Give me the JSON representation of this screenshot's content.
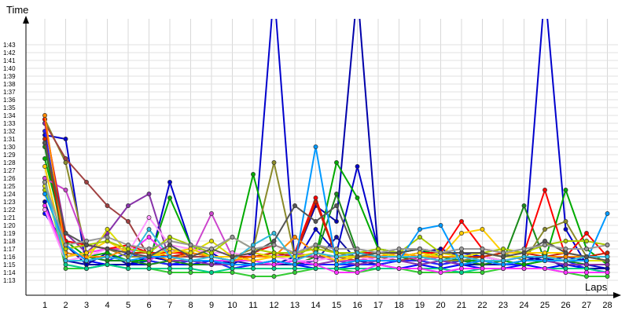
{
  "chart_data": {
    "type": "line",
    "ylabel": "Time",
    "xlabel": "Laps",
    "x": [
      1,
      2,
      3,
      4,
      5,
      6,
      7,
      8,
      9,
      10,
      11,
      12,
      13,
      14,
      15,
      16,
      17,
      18,
      19,
      20,
      21,
      22,
      23,
      24,
      25,
      26,
      27,
      28
    ],
    "x_tick_labels": [
      "1",
      "2",
      "3",
      "4",
      "5",
      "6",
      "7",
      "8",
      "9",
      "10",
      "11",
      "12",
      "13",
      "14",
      "15",
      "16",
      "17",
      "18",
      "19",
      "20",
      "21",
      "22",
      "23",
      "24",
      "25",
      "26",
      "27",
      "28"
    ],
    "y_tick_labels": [
      "1:13",
      "1:14",
      "1:15",
      "1:16",
      "1:17",
      "1:18",
      "1:19",
      "1:20",
      "1:21",
      "1:22",
      "1:23",
      "1:24",
      "1:25",
      "1:26",
      "1:27",
      "1:28",
      "1:29",
      "1:30",
      "1:31",
      "1:32",
      "1:33",
      "1:34",
      "1:35",
      "1:36",
      "1:37",
      "1:38",
      "1:39",
      "1:40",
      "1:41",
      "1:42",
      "1:43"
    ],
    "y_tick_seconds": [
      73,
      74,
      75,
      76,
      77,
      78,
      79,
      80,
      81,
      82,
      83,
      84,
      85,
      86,
      87,
      88,
      89,
      90,
      91,
      92,
      93,
      94,
      95,
      96,
      97,
      98,
      99,
      100,
      101,
      102,
      103
    ],
    "y_unit": "seconds (m:ss)",
    "ylim": [
      73,
      106
    ],
    "xlim": [
      0.8,
      28.2
    ],
    "grid": true,
    "legend": "none",
    "marker": "open circle",
    "series": [
      {
        "color": "#0000ff",
        "values": [
          81.5,
          77.5,
          75.5,
          75.0,
          75.0,
          75.5,
          75.0,
          75.0,
          75.5,
          74.5,
          75.0,
          75.0,
          75.0,
          74.5,
          74.5,
          75.0,
          75.0,
          74.5,
          75.0,
          74.5,
          75.0,
          74.5,
          74.5,
          75.0,
          74.5,
          75.0,
          74.5,
          74.5
        ]
      },
      {
        "color": "#0000cc",
        "values": [
          91.5,
          91.0,
          74.5,
          75.0,
          75.0,
          75.0,
          85.5,
          77.5,
          76.5,
          75.0,
          76.5,
          110.0,
          75.0,
          79.5,
          76.5,
          87.5,
          77.0,
          76.5,
          77.0,
          76.5,
          76.5,
          76.0,
          75.5,
          76.0,
          110.0,
          79.5,
          75.0,
          74.5
        ]
      },
      {
        "color": "#1010a0",
        "values": [
          90.5,
          77.5,
          75.0,
          76.5,
          75.0,
          76.0,
          75.5,
          75.5,
          75.0,
          75.5,
          75.0,
          75.0,
          75.0,
          75.5,
          78.5,
          75.5,
          75.0,
          75.5,
          76.0,
          75.5,
          75.0,
          75.0,
          75.0,
          75.5,
          76.0,
          74.5,
          74.5,
          74.5
        ]
      },
      {
        "color": "#2020ff",
        "values": [
          92.0,
          76.5,
          76.0,
          75.5,
          76.5,
          75.5,
          75.0,
          75.5,
          75.5,
          74.5,
          75.0,
          75.5,
          75.0,
          75.0,
          75.0,
          75.0,
          75.0,
          75.5,
          75.5,
          75.0,
          75.5,
          75.5,
          75.0,
          75.0,
          75.5,
          75.5,
          74.5,
          74.0
        ]
      },
      {
        "color": "#0000aa",
        "values": [
          83.0,
          75.5,
          75.0,
          75.0,
          75.0,
          76.0,
          75.5,
          75.5,
          75.5,
          75.0,
          75.0,
          75.0,
          76.0,
          82.5,
          80.5,
          110.0,
          76.5,
          76.0,
          76.5,
          77.0,
          76.0,
          76.0,
          75.5,
          76.0,
          75.5,
          76.0,
          75.5,
          75.5
        ]
      },
      {
        "color": "#00aa00",
        "values": [
          88.5,
          78.0,
          76.0,
          76.5,
          75.5,
          75.5,
          83.5,
          77.5,
          76.0,
          75.5,
          86.5,
          76.5,
          76.0,
          76.0,
          88.0,
          83.5,
          77.0,
          76.5,
          77.0,
          76.0,
          75.5,
          75.5,
          75.5,
          75.0,
          75.5,
          84.5,
          77.0,
          75.0
        ]
      },
      {
        "color": "#1a8a1a",
        "values": [
          90.0,
          76.5,
          76.0,
          75.5,
          75.5,
          75.0,
          75.5,
          75.0,
          75.0,
          75.0,
          75.0,
          75.5,
          75.0,
          76.0,
          84.0,
          76.5,
          76.0,
          76.0,
          75.5,
          76.0,
          75.5,
          75.0,
          75.5,
          82.5,
          75.5,
          75.5,
          75.0,
          75.0
        ]
      },
      {
        "color": "#33cc33",
        "values": [
          86.0,
          74.5,
          74.5,
          75.0,
          74.5,
          74.5,
          74.0,
          74.0,
          74.0,
          74.0,
          73.5,
          73.5,
          74.0,
          74.5,
          74.5,
          74.0,
          74.5,
          74.5,
          74.0,
          74.0,
          74.0,
          74.0,
          74.5,
          74.5,
          74.5,
          74.0,
          73.5,
          73.5
        ]
      },
      {
        "color": "#00cc88",
        "values": [
          85.5,
          75.0,
          74.5,
          75.0,
          74.5,
          74.5,
          74.5,
          74.5,
          74.0,
          74.5,
          74.5,
          74.5,
          74.5,
          74.5,
          74.5,
          74.5,
          74.5,
          74.5,
          74.5,
          74.5,
          74.0,
          74.5,
          74.5,
          74.5,
          74.5,
          74.5,
          74.5,
          74.0
        ]
      },
      {
        "color": "#8a8a2a",
        "values": [
          93.5,
          88.0,
          76.5,
          77.0,
          76.0,
          76.0,
          76.0,
          76.5,
          76.0,
          76.0,
          77.0,
          88.0,
          76.0,
          77.5,
          76.5,
          76.0,
          76.0,
          76.0,
          76.0,
          75.5,
          75.5,
          76.0,
          76.5,
          75.5,
          79.5,
          80.5,
          76.0,
          76.0
        ]
      },
      {
        "color": "#a04040",
        "values": [
          93.0,
          88.5,
          85.5,
          82.5,
          80.5,
          76.0,
          76.0,
          76.0,
          76.0,
          75.5,
          76.0,
          76.0,
          76.0,
          76.0,
          76.0,
          75.5,
          76.0,
          75.5,
          76.0,
          75.5,
          76.0,
          76.0,
          75.5,
          76.0,
          76.0,
          75.5,
          75.5,
          75.5
        ]
      },
      {
        "color": "#8833aa",
        "values": [
          93.0,
          79.0,
          76.5,
          79.0,
          82.5,
          84.0,
          75.5,
          75.5,
          75.0,
          75.0,
          75.0,
          75.0,
          75.5,
          75.0,
          75.5,
          75.0,
          75.5,
          75.5,
          75.0,
          75.5,
          75.0,
          75.5,
          75.0,
          75.5,
          75.5,
          75.0,
          75.0,
          75.0
        ]
      },
      {
        "color": "#cc44cc",
        "values": [
          86.0,
          84.5,
          77.5,
          77.0,
          77.0,
          75.5,
          77.0,
          76.0,
          81.5,
          76.0,
          76.5,
          76.0,
          76.5,
          76.0,
          75.5,
          75.5,
          76.0,
          76.5,
          75.5,
          76.0,
          76.0,
          75.5,
          75.5,
          76.0,
          76.0,
          75.5,
          75.5,
          75.5
        ]
      },
      {
        "color": "#ff33ff",
        "values": [
          82.5,
          76.0,
          76.5,
          77.0,
          76.5,
          78.5,
          76.0,
          75.5,
          75.5,
          75.5,
          75.5,
          75.0,
          75.5,
          75.0,
          74.0,
          74.0,
          75.0,
          74.5,
          74.5,
          74.0,
          74.5,
          74.5,
          74.5,
          74.5,
          74.5,
          74.0,
          74.0,
          74.0
        ]
      },
      {
        "color": "#ff99ff",
        "values": [
          82.0,
          75.5,
          76.0,
          77.0,
          76.5,
          81.0,
          77.5,
          77.0,
          76.5,
          76.5,
          76.0,
          76.0,
          75.5,
          75.5,
          76.0,
          76.0,
          75.5,
          76.0,
          76.0,
          75.5,
          76.0,
          76.0,
          75.5,
          76.0,
          76.0,
          75.5,
          75.5,
          75.5
        ]
      },
      {
        "color": "#ff0000",
        "values": [
          93.5,
          78.0,
          77.5,
          77.0,
          77.5,
          76.5,
          76.5,
          76.5,
          76.0,
          76.0,
          76.5,
          77.5,
          76.5,
          83.5,
          76.0,
          76.5,
          76.5,
          76.0,
          76.5,
          76.5,
          80.5,
          77.0,
          76.5,
          76.5,
          84.5,
          76.0,
          79.0,
          76.0
        ]
      },
      {
        "color": "#cc2200",
        "values": [
          91.0,
          77.0,
          77.5,
          77.0,
          76.5,
          76.5,
          76.0,
          76.5,
          76.0,
          76.0,
          76.0,
          76.5,
          76.0,
          83.0,
          76.0,
          76.0,
          76.5,
          76.0,
          76.0,
          76.5,
          76.0,
          76.0,
          76.5,
          76.5,
          76.0,
          76.5,
          76.0,
          76.5
        ]
      },
      {
        "color": "#ff8800",
        "values": [
          94.0,
          76.5,
          76.0,
          76.0,
          77.0,
          76.5,
          75.5,
          76.5,
          76.0,
          75.5,
          76.0,
          76.0,
          78.5,
          76.5,
          76.0,
          76.0,
          76.0,
          76.5,
          76.0,
          76.0,
          76.0,
          76.5,
          76.0,
          76.0,
          76.0,
          76.0,
          76.0,
          75.5
        ]
      },
      {
        "color": "#ffcc00",
        "values": [
          87.5,
          76.0,
          76.5,
          78.0,
          76.5,
          76.0,
          76.5,
          77.0,
          76.0,
          76.0,
          75.5,
          76.0,
          76.0,
          76.5,
          75.5,
          76.0,
          76.5,
          76.0,
          76.5,
          76.0,
          79.0,
          79.5,
          76.5,
          76.5,
          76.5,
          76.5,
          76.0,
          75.5
        ]
      },
      {
        "color": "#dddd00",
        "values": [
          85.0,
          75.5,
          75.5,
          79.5,
          76.5,
          76.0,
          77.0,
          76.5,
          78.0,
          76.0,
          76.5,
          76.0,
          76.0,
          76.5,
          76.0,
          76.0,
          76.5,
          76.0,
          76.0,
          76.5,
          76.0,
          76.5,
          76.0,
          76.0,
          76.0,
          75.5,
          75.5,
          75.5
        ]
      },
      {
        "color": "#aacc00",
        "values": [
          84.5,
          77.0,
          77.5,
          78.0,
          77.0,
          76.5,
          78.5,
          77.5,
          76.5,
          78.5,
          77.0,
          76.5,
          76.5,
          77.0,
          76.5,
          76.5,
          77.0,
          76.5,
          78.5,
          76.5,
          76.5,
          76.5,
          77.0,
          76.5,
          77.5,
          78.0,
          78.0,
          77.5
        ]
      },
      {
        "color": "#0099ff",
        "values": [
          84.0,
          77.5,
          75.5,
          76.0,
          75.5,
          76.0,
          76.0,
          75.5,
          75.5,
          75.0,
          75.0,
          75.5,
          75.0,
          90.0,
          75.0,
          75.5,
          75.5,
          75.5,
          79.5,
          80.0,
          75.0,
          75.5,
          75.0,
          75.5,
          75.5,
          75.5,
          75.5,
          81.5
        ]
      },
      {
        "color": "#33bbdd",
        "values": [
          85.5,
          75.5,
          75.5,
          76.0,
          75.5,
          79.5,
          76.0,
          75.5,
          76.0,
          75.5,
          77.5,
          79.0,
          75.5,
          76.5,
          76.0,
          76.5,
          76.0,
          76.0,
          76.0,
          75.5,
          76.0,
          75.5,
          75.5,
          76.0,
          76.0,
          75.5,
          76.0,
          76.0
        ]
      },
      {
        "color": "#555555",
        "values": [
          90.5,
          79.0,
          77.5,
          77.0,
          76.5,
          76.0,
          77.5,
          76.0,
          77.0,
          76.0,
          76.5,
          78.0,
          82.5,
          80.5,
          82.5,
          76.0,
          76.5,
          76.5,
          77.0,
          76.5,
          76.5,
          76.5,
          76.0,
          76.5,
          78.0,
          76.5,
          76.0,
          75.5
        ]
      },
      {
        "color": "#999999",
        "values": [
          85.5,
          77.5,
          78.0,
          78.5,
          77.5,
          77.0,
          78.0,
          77.5,
          77.0,
          78.5,
          77.0,
          77.5,
          76.5,
          77.5,
          77.0,
          77.0,
          76.5,
          77.0,
          77.0,
          76.5,
          77.0,
          77.0,
          76.5,
          77.0,
          77.5,
          77.0,
          77.0,
          77.5
        ]
      }
    ]
  }
}
